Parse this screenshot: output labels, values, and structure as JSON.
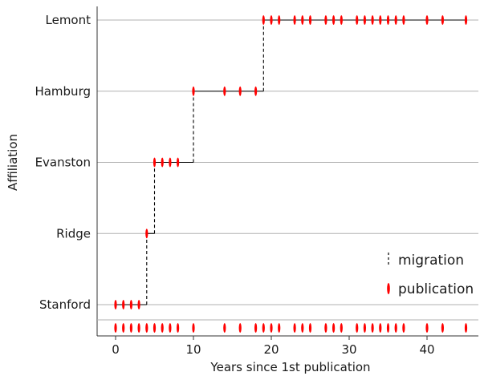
{
  "chart_data": {
    "type": "step",
    "xlabel": "Years since 1st publication",
    "ylabel": "Affiliation",
    "xlim": [
      -2.5,
      47
    ],
    "x_ticks": [
      0,
      10,
      20,
      30,
      40
    ],
    "categories": [
      "Stanford",
      "Ridge",
      "Evanston",
      "Hamburg",
      "Lemont"
    ],
    "grid": "horizontal",
    "legend_position": "bottom-right",
    "legend": [
      {
        "key": "migration",
        "label": "migration"
      },
      {
        "key": "publication",
        "label": "publication"
      }
    ],
    "colors": {
      "publication": "#ff0000",
      "migration": "#000000",
      "grid": "#b0b0b0"
    },
    "affiliation_periods": [
      {
        "affiliation": "Stanford",
        "start": 0,
        "end": 4
      },
      {
        "affiliation": "Ridge",
        "start": 4,
        "end": 5
      },
      {
        "affiliation": "Evanston",
        "start": 5,
        "end": 10
      },
      {
        "affiliation": "Hamburg",
        "start": 10,
        "end": 19
      },
      {
        "affiliation": "Lemont",
        "start": 19,
        "end": 45
      }
    ],
    "publications": [
      {
        "affiliation": "Stanford",
        "x": [
          0,
          1,
          2,
          3
        ]
      },
      {
        "affiliation": "Ridge",
        "x": [
          4
        ]
      },
      {
        "affiliation": "Evanston",
        "x": [
          5,
          6,
          7,
          8
        ]
      },
      {
        "affiliation": "Hamburg",
        "x": [
          10,
          14,
          16,
          18
        ]
      },
      {
        "affiliation": "Lemont",
        "x": [
          19,
          20,
          21,
          23,
          24,
          25,
          27,
          28,
          29,
          31,
          32,
          33,
          34,
          35,
          36,
          37,
          40,
          42,
          45
        ]
      }
    ],
    "publication_rug": [
      0,
      1,
      2,
      3,
      4,
      5,
      6,
      7,
      8,
      10,
      14,
      16,
      18,
      19,
      20,
      21,
      23,
      24,
      25,
      27,
      28,
      29,
      31,
      32,
      33,
      34,
      35,
      36,
      37,
      40,
      42,
      45
    ]
  }
}
